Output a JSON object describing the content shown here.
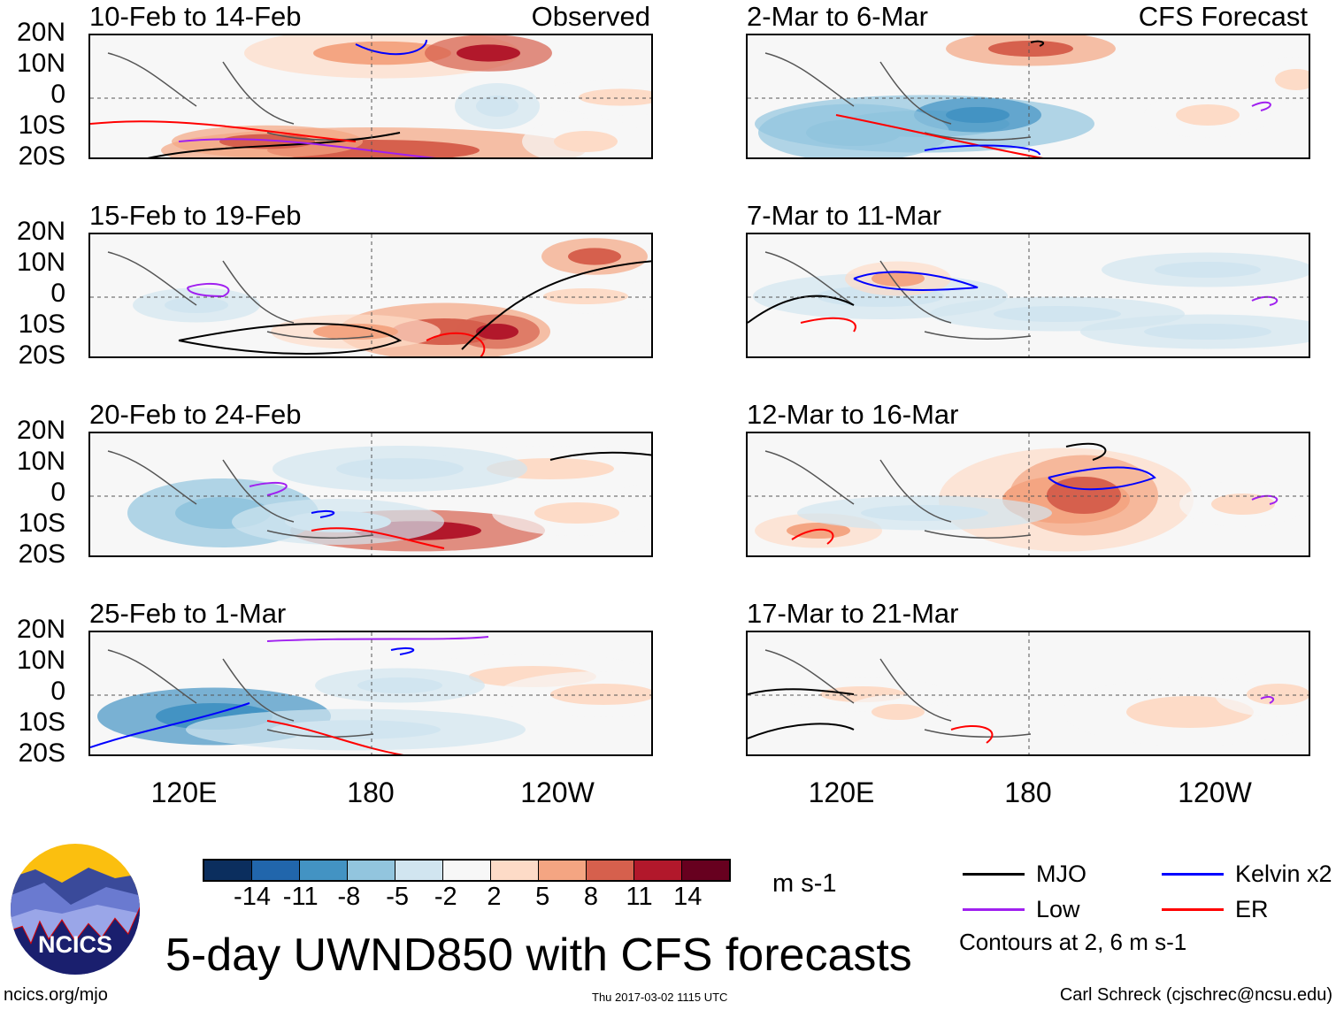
{
  "observed_label": "Observed",
  "forecast_label": "CFS Forecast",
  "lat_labels": [
    "20N",
    "10N",
    "0",
    "10S",
    "20S"
  ],
  "lon_labels": [
    "120E",
    "180",
    "120W"
  ],
  "panels_left": [
    {
      "title": "10-Feb to 14-Feb"
    },
    {
      "title": "15-Feb to 19-Feb"
    },
    {
      "title": "20-Feb to 24-Feb"
    },
    {
      "title": "25-Feb to 1-Mar"
    }
  ],
  "panels_right": [
    {
      "title": "2-Mar to 6-Mar"
    },
    {
      "title": "7-Mar to 11-Mar"
    },
    {
      "title": "12-Mar to 16-Mar"
    },
    {
      "title": "17-Mar to 21-Mar"
    }
  ],
  "colorbar": {
    "colors": [
      "#0b2e5e",
      "#2166ac",
      "#4393c3",
      "#92c5de",
      "#d1e5f0",
      "#f7f7f7",
      "#fddbc7",
      "#f4a582",
      "#d6604d",
      "#b2182b",
      "#67001f"
    ],
    "labels": [
      "-14",
      "-11",
      "-8",
      "-5",
      "-2",
      "2",
      "5",
      "8",
      "11",
      "14"
    ],
    "units": "m s-1"
  },
  "legend": {
    "items": [
      {
        "label": "MJO",
        "color": "#000000"
      },
      {
        "label": "Kelvin x2",
        "color": "#0000ff"
      },
      {
        "label": "Low",
        "color": "#a020f0"
      },
      {
        "label": "ER",
        "color": "#ff0000"
      }
    ],
    "contours_note": "Contours at 2, 6 m s-1"
  },
  "logo_text": "NCICS",
  "title": "5-day UWND850 with CFS forecasts",
  "footer": {
    "left": "ncics.org/mjo",
    "center": "Thu 2017-03-02 1115 UTC",
    "right": "Carl Schreck (cjschrec@ncsu.edu)"
  }
}
